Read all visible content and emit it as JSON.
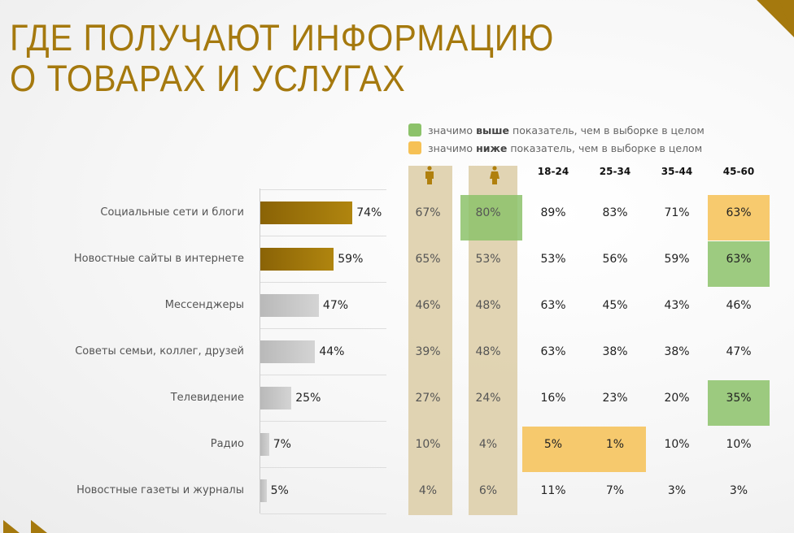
{
  "title_line1": "ГДЕ ПОЛУЧАЮТ ИНФОРМАЦИЮ",
  "title_line2": "О ТОВАРАХ И УСЛУГАХ",
  "legend": {
    "higher": {
      "pre": "значимо ",
      "bold": "выше",
      "post": " показатель, чем в выборке в целом",
      "color": "#8cc26a"
    },
    "lower": {
      "pre": "значимо ",
      "bold": "ниже",
      "post": " показатель, чем в выборке в целом",
      "color": "#f6c155"
    }
  },
  "colors": {
    "accent": "#a5790e",
    "bar_gold": "#a5790e",
    "bar_grey": "#c8c8c8",
    "column_bg": "#dccca6"
  },
  "chart_data": {
    "type": "bar",
    "orientation": "horizontal",
    "categories": [
      "Социальные сети и блоги",
      "Новостные сайты в интернете",
      "Мессенджеры",
      "Советы семьи, коллег, друзей",
      "Телевидение",
      "Радио",
      "Новостные газеты и журналы"
    ],
    "values": [
      74,
      59,
      47,
      44,
      25,
      7,
      5
    ],
    "value_labels": [
      "74%",
      "59%",
      "47%",
      "44%",
      "25%",
      "7%",
      "5%"
    ],
    "highlighted_bars": [
      0,
      1
    ],
    "table": {
      "columns": [
        {
          "key": "male",
          "label": "",
          "icon": "male-icon"
        },
        {
          "key": "female",
          "label": "",
          "icon": "female-icon"
        },
        {
          "key": "18-24",
          "label": "18-24"
        },
        {
          "key": "25-34",
          "label": "25-34"
        },
        {
          "key": "35-44",
          "label": "35-44"
        },
        {
          "key": "45-60",
          "label": "45-60"
        }
      ],
      "rows": [
        [
          "67%",
          "80%",
          "89%",
          "83%",
          "71%",
          "63%"
        ],
        [
          "65%",
          "53%",
          "53%",
          "56%",
          "59%",
          "63%"
        ],
        [
          "46%",
          "48%",
          "63%",
          "45%",
          "43%",
          "46%"
        ],
        [
          "39%",
          "48%",
          "63%",
          "38%",
          "38%",
          "47%"
        ],
        [
          "27%",
          "24%",
          "16%",
          "23%",
          "20%",
          "35%"
        ],
        [
          "10%",
          "4%",
          "5%",
          "1%",
          "10%",
          "10%"
        ],
        [
          "4%",
          "6%",
          "11%",
          "7%",
          "3%",
          "3%"
        ]
      ],
      "significance": [
        {
          "row": 0,
          "col": 1,
          "type": "higher"
        },
        {
          "row": 0,
          "col": 5,
          "type": "lower"
        },
        {
          "row": 1,
          "col": 5,
          "type": "higher"
        },
        {
          "row": 4,
          "col": 5,
          "type": "higher"
        },
        {
          "row": 5,
          "col": 2,
          "type": "lower"
        },
        {
          "row": 5,
          "col": 3,
          "type": "lower"
        }
      ]
    }
  }
}
